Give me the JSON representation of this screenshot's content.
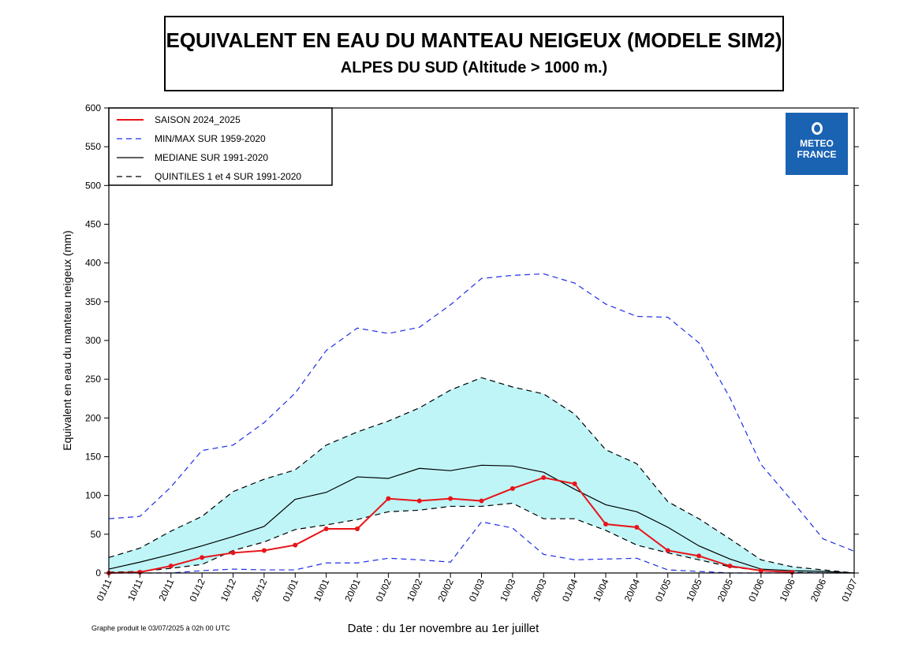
{
  "title": "EQUIVALENT EN EAU DU MANTEAU NEIGEUX (MODELE SIM2)",
  "subtitle": "ALPES DU SUD (Altitude > 1000 m.)",
  "footer_note": "Graphe produit le 03/07/2025 à 02h 00 UTC",
  "logo": {
    "line1": "METEO",
    "line2": "FRANCE",
    "color": "#1a63b3"
  },
  "chart_data": {
    "type": "line",
    "xlabel": "Date : du 1er novembre au 1er juillet",
    "ylabel": "Equivalent en eau du manteau neigeux (mm)",
    "ylim": [
      0,
      600
    ],
    "yticks": [
      0,
      50,
      100,
      150,
      200,
      250,
      300,
      350,
      400,
      450,
      500,
      550,
      600
    ],
    "x": [
      "01/11",
      "10/11",
      "20/11",
      "01/12",
      "10/12",
      "20/12",
      "01/01",
      "10/01",
      "20/01",
      "01/02",
      "10/02",
      "20/02",
      "01/03",
      "10/03",
      "20/03",
      "01/04",
      "10/04",
      "20/04",
      "01/05",
      "10/05",
      "20/05",
      "01/06",
      "10/06",
      "20/06",
      "01/07"
    ],
    "legend_position": "top-left",
    "fill_between_quintiles_color": "#bff5f7",
    "series": [
      {
        "name": "SAISON 2024_2025",
        "style": "solid-markers",
        "color": "#e8141a",
        "values": [
          0,
          1,
          9,
          20,
          26,
          29,
          36,
          57,
          57,
          96,
          93,
          96,
          93,
          109,
          123,
          115,
          63,
          59,
          29,
          22,
          9,
          3,
          1,
          null,
          null
        ]
      },
      {
        "name": "MIN/MAX SUR 1959-2020",
        "role": "max",
        "style": "dashed",
        "color": "#1f2ee6",
        "values": [
          70,
          73,
          111,
          158,
          165,
          194,
          232,
          287,
          316,
          309,
          317,
          346,
          380,
          384,
          386,
          374,
          347,
          331,
          330,
          297,
          226,
          140,
          93,
          44,
          28
        ]
      },
      {
        "name": "MIN/MAX SUR 1959-2020",
        "role": "min",
        "style": "dashed",
        "color": "#1f2ee6",
        "values": [
          0,
          0,
          0,
          3,
          5,
          4,
          4,
          13,
          13,
          19,
          17,
          14,
          66,
          58,
          24,
          17,
          18,
          19,
          4,
          2,
          0,
          0,
          0,
          0,
          0
        ]
      },
      {
        "name": "MEDIANE SUR 1991-2020",
        "style": "solid",
        "color": "#000000",
        "values": [
          5,
          14,
          24,
          35,
          47,
          60,
          95,
          104,
          124,
          122,
          135,
          132,
          139,
          138,
          130,
          108,
          88,
          79,
          59,
          35,
          18,
          5,
          3,
          2,
          0
        ]
      },
      {
        "name": "QUINTILES 1 et 4 SUR 1991-2020",
        "role": "q4",
        "style": "dashed",
        "color": "#000000",
        "values": [
          20,
          32,
          54,
          73,
          105,
          121,
          133,
          165,
          182,
          196,
          213,
          236,
          252,
          240,
          231,
          205,
          159,
          141,
          92,
          70,
          44,
          17,
          8,
          4,
          0
        ]
      },
      {
        "name": "QUINTILES 1 et 4 SUR 1991-2020",
        "role": "q1",
        "style": "dashed",
        "color": "#000000",
        "values": [
          1,
          2,
          6,
          11,
          29,
          40,
          56,
          62,
          69,
          79,
          81,
          86,
          86,
          90,
          70,
          70,
          55,
          36,
          26,
          17,
          8,
          3,
          1,
          0,
          0
        ]
      }
    ]
  }
}
